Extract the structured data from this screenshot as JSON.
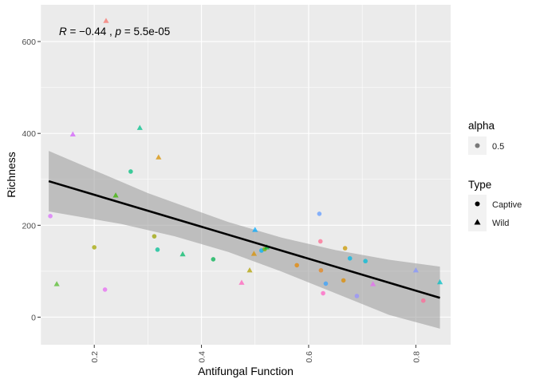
{
  "chart_data": {
    "type": "scatter",
    "xlabel": "Antifungal Function",
    "ylabel": "Richness",
    "xlim": [
      0.1,
      0.865
    ],
    "ylim": [
      -60,
      680
    ],
    "x_ticks": [
      0.2,
      0.4,
      0.6,
      0.8
    ],
    "x_tick_labels": [
      "0.2",
      "0.4",
      "0.6",
      "0.8"
    ],
    "y_ticks": [
      0,
      200,
      400,
      600
    ],
    "y_tick_labels": [
      "0",
      "200",
      "400",
      "600"
    ],
    "grid": true,
    "annotation": {
      "r_symbol": "R",
      "r_value": " = −0.44 , ",
      "p_symbol": "p",
      "p_value": " = 5.5e-05"
    },
    "regression": {
      "x": [
        0.115,
        0.845
      ],
      "y": [
        296,
        42
      ],
      "ci_upper": [
        [
          0.115,
          362
        ],
        [
          0.3,
          270
        ],
        [
          0.45,
          207
        ],
        [
          0.55,
          173
        ],
        [
          0.65,
          146
        ],
        [
          0.75,
          125
        ],
        [
          0.845,
          110
        ]
      ],
      "ci_lower": [
        [
          0.115,
          230
        ],
        [
          0.25,
          203
        ],
        [
          0.35,
          176
        ],
        [
          0.45,
          142
        ],
        [
          0.55,
          99
        ],
        [
          0.65,
          52
        ],
        [
          0.75,
          5
        ],
        [
          0.845,
          -25
        ]
      ]
    },
    "legend": {
      "placement": "right",
      "alpha_title": "alpha",
      "alpha_label": "0.5",
      "type_title": "Type",
      "type_items": [
        {
          "label": "Captive",
          "shape": "circle"
        },
        {
          "label": "Wild",
          "shape": "triangle"
        }
      ]
    },
    "points": [
      {
        "x": 0.118,
        "y": 220,
        "shape": "circle",
        "color": "#DA72FB"
      },
      {
        "x": 0.13,
        "y": 72,
        "shape": "triangle",
        "color": "#55BC2E"
      },
      {
        "x": 0.16,
        "y": 398,
        "shape": "triangle",
        "color": "#D35FFB"
      },
      {
        "x": 0.2,
        "y": 152,
        "shape": "circle",
        "color": "#A3A500"
      },
      {
        "x": 0.22,
        "y": 60,
        "shape": "circle",
        "color": "#E76BF3"
      },
      {
        "x": 0.222,
        "y": 645,
        "shape": "triangle",
        "color": "#F8766D"
      },
      {
        "x": 0.24,
        "y": 265,
        "shape": "triangle",
        "color": "#39B600"
      },
      {
        "x": 0.268,
        "y": 317,
        "shape": "circle",
        "color": "#00BF7D"
      },
      {
        "x": 0.285,
        "y": 412,
        "shape": "triangle",
        "color": "#00C08B"
      },
      {
        "x": 0.312,
        "y": 176,
        "shape": "circle",
        "color": "#9BA300"
      },
      {
        "x": 0.318,
        "y": 147,
        "shape": "circle",
        "color": "#00BE93"
      },
      {
        "x": 0.32,
        "y": 348,
        "shape": "triangle",
        "color": "#D89000"
      },
      {
        "x": 0.365,
        "y": 137,
        "shape": "triangle",
        "color": "#00BA68"
      },
      {
        "x": 0.422,
        "y": 126,
        "shape": "circle",
        "color": "#00B050"
      },
      {
        "x": 0.475,
        "y": 75,
        "shape": "triangle",
        "color": "#FF62BC"
      },
      {
        "x": 0.49,
        "y": 102,
        "shape": "triangle",
        "color": "#B0A000"
      },
      {
        "x": 0.498,
        "y": 138,
        "shape": "triangle",
        "color": "#D89000"
      },
      {
        "x": 0.5,
        "y": 190,
        "shape": "triangle",
        "color": "#00A9FF"
      },
      {
        "x": 0.512,
        "y": 145,
        "shape": "circle",
        "color": "#00B0F6"
      },
      {
        "x": 0.518,
        "y": 148,
        "shape": "circle",
        "color": "#7CAE00"
      },
      {
        "x": 0.522,
        "y": 152,
        "shape": "triangle",
        "color": "#00BA38"
      },
      {
        "x": 0.578,
        "y": 113,
        "shape": "circle",
        "color": "#E58700"
      },
      {
        "x": 0.62,
        "y": 225,
        "shape": "circle",
        "color": "#619CFF"
      },
      {
        "x": 0.622,
        "y": 165,
        "shape": "circle",
        "color": "#FF6C91"
      },
      {
        "x": 0.623,
        "y": 102,
        "shape": "circle",
        "color": "#E7861B"
      },
      {
        "x": 0.627,
        "y": 52,
        "shape": "circle",
        "color": "#FF61C3"
      },
      {
        "x": 0.632,
        "y": 73,
        "shape": "circle",
        "color": "#35A2FF"
      },
      {
        "x": 0.665,
        "y": 80,
        "shape": "circle",
        "color": "#DE8C00"
      },
      {
        "x": 0.668,
        "y": 150,
        "shape": "circle",
        "color": "#C99800"
      },
      {
        "x": 0.677,
        "y": 128,
        "shape": "circle",
        "color": "#00B8E7"
      },
      {
        "x": 0.69,
        "y": 46,
        "shape": "circle",
        "color": "#9590FF"
      },
      {
        "x": 0.706,
        "y": 122,
        "shape": "circle",
        "color": "#00BCD8"
      },
      {
        "x": 0.72,
        "y": 72,
        "shape": "triangle",
        "color": "#E76BF3"
      },
      {
        "x": 0.8,
        "y": 102,
        "shape": "triangle",
        "color": "#8494FF"
      },
      {
        "x": 0.814,
        "y": 36,
        "shape": "circle",
        "color": "#FF6A98"
      },
      {
        "x": 0.845,
        "y": 76,
        "shape": "triangle",
        "color": "#00BFC4"
      }
    ]
  }
}
